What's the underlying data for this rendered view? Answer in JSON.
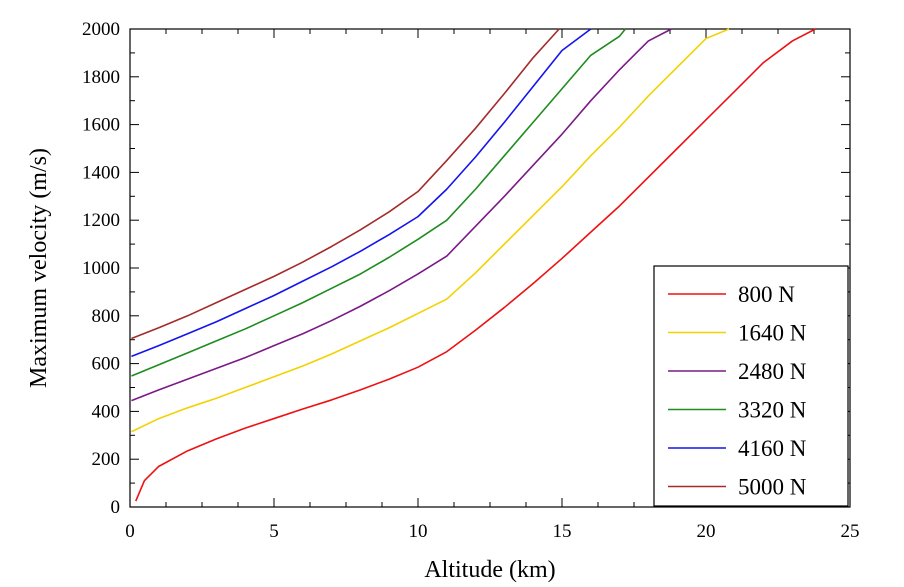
{
  "chart_data": {
    "type": "line",
    "xlabel": "Altitude (km)",
    "ylabel": "Maximum velocity (m/s)",
    "xlim": [
      0,
      25
    ],
    "ylim": [
      0,
      2000
    ],
    "xticks": [
      0,
      5,
      10,
      15,
      20,
      25
    ],
    "yticks": [
      0,
      200,
      400,
      600,
      800,
      1000,
      1200,
      1400,
      1600,
      1800,
      2000
    ],
    "grid": false,
    "legend_position": "bottom-right",
    "series": [
      {
        "name": "800 N",
        "color": "#ee1111",
        "x": [
          0.2,
          0.5,
          1,
          2,
          3,
          4,
          5,
          6,
          7,
          8,
          9,
          10,
          11,
          12,
          13,
          14,
          15,
          16,
          17,
          18,
          19,
          20,
          21,
          22,
          23,
          23.8
        ],
        "y": [
          25,
          110,
          170,
          235,
          285,
          330,
          370,
          410,
          448,
          490,
          535,
          585,
          650,
          740,
          835,
          935,
          1040,
          1150,
          1260,
          1380,
          1500,
          1620,
          1740,
          1860,
          1950,
          2000
        ]
      },
      {
        "name": "1640 N",
        "color": "#f2d200",
        "x": [
          0.05,
          1,
          2,
          3,
          4,
          5,
          6,
          7,
          8,
          9,
          10,
          11,
          12,
          13,
          14,
          15,
          16,
          17,
          18,
          19,
          20,
          20.8
        ],
        "y": [
          315,
          370,
          415,
          455,
          500,
          545,
          590,
          640,
          695,
          750,
          810,
          870,
          980,
          1100,
          1220,
          1340,
          1470,
          1590,
          1720,
          1840,
          1960,
          2000
        ]
      },
      {
        "name": "2480 N",
        "color": "#7a1a86",
        "x": [
          0.05,
          1,
          2,
          3,
          4,
          5,
          6,
          7,
          8,
          9,
          10,
          11,
          12,
          13,
          14,
          15,
          16,
          17,
          18,
          18.8
        ],
        "y": [
          445,
          490,
          535,
          580,
          625,
          675,
          725,
          780,
          840,
          905,
          975,
          1050,
          1175,
          1300,
          1430,
          1560,
          1700,
          1830,
          1950,
          2000
        ]
      },
      {
        "name": "3320 N",
        "color": "#1e8c1e",
        "x": [
          0.05,
          1,
          2,
          3,
          4,
          5,
          6,
          7,
          8,
          9,
          10,
          11,
          12,
          13,
          14,
          15,
          16,
          17,
          17.2
        ],
        "y": [
          548,
          595,
          645,
          695,
          745,
          800,
          855,
          915,
          975,
          1045,
          1120,
          1200,
          1330,
          1470,
          1610,
          1750,
          1890,
          1970,
          2000
        ]
      },
      {
        "name": "4160 N",
        "color": "#1414ee",
        "x": [
          0.05,
          1,
          2,
          3,
          4,
          5,
          6,
          7,
          8,
          9,
          10,
          11,
          12,
          13,
          14,
          15,
          16
        ],
        "y": [
          630,
          675,
          725,
          775,
          830,
          885,
          945,
          1005,
          1070,
          1140,
          1215,
          1330,
          1465,
          1610,
          1760,
          1910,
          2000
        ]
      },
      {
        "name": "5000 N",
        "color": "#a52a2a",
        "x": [
          0.05,
          1,
          2,
          3,
          4,
          5,
          6,
          7,
          8,
          9,
          10,
          11,
          12,
          13,
          14,
          14.9
        ],
        "y": [
          705,
          750,
          800,
          855,
          910,
          965,
          1025,
          1090,
          1160,
          1235,
          1320,
          1450,
          1585,
          1730,
          1880,
          2000
        ]
      }
    ]
  }
}
